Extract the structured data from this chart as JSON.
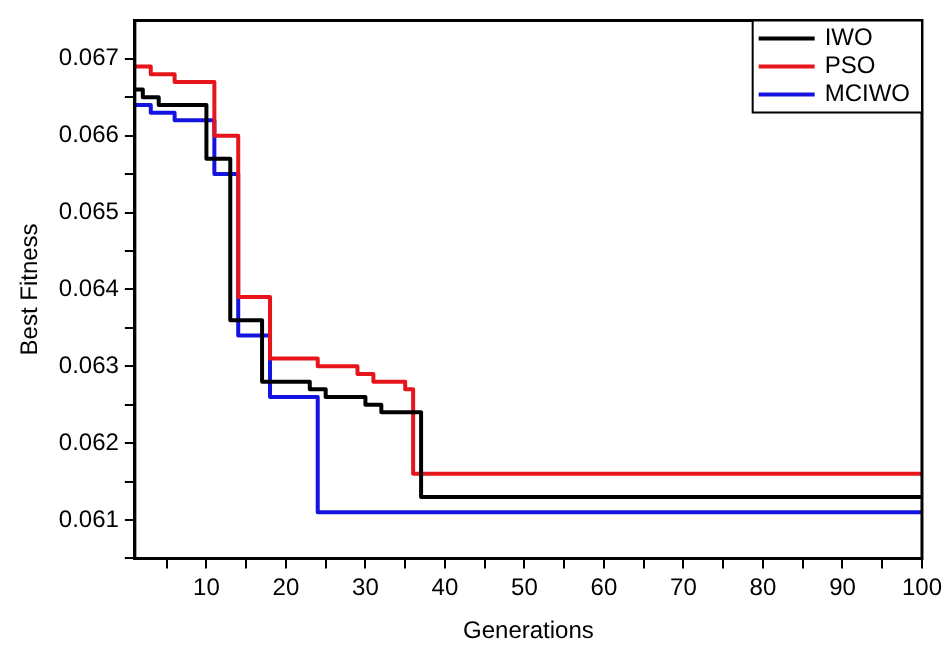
{
  "chart_data": {
    "type": "step",
    "xlabel": "Generations",
    "ylabel": "Best Fitness",
    "xlim": [
      1,
      100
    ],
    "xticks": [
      {
        "value": 5,
        "label": null
      },
      10,
      {
        "value": 15,
        "label": null
      },
      20,
      {
        "value": 25,
        "label": null
      },
      30,
      {
        "value": 35,
        "label": null
      },
      40,
      {
        "value": 45,
        "label": null
      },
      50,
      {
        "value": 55,
        "label": null
      },
      60,
      {
        "value": 65,
        "label": null
      },
      70,
      {
        "value": 75,
        "label": null
      },
      80,
      {
        "value": 85,
        "label": null
      },
      90,
      {
        "value": 95,
        "label": null
      },
      100
    ],
    "ylim": [
      0.0605,
      0.0675
    ],
    "yticks": [
      {
        "value": 0.0605,
        "label": null
      },
      0.061,
      {
        "value": 0.0615,
        "label": null
      },
      0.062,
      {
        "value": 0.0625,
        "label": null
      },
      0.063,
      {
        "value": 0.0635,
        "label": null
      },
      0.064,
      {
        "value": 0.0645,
        "label": null
      },
      0.065,
      {
        "value": 0.0655,
        "label": null
      },
      0.066,
      {
        "value": 0.0665,
        "label": null
      },
      0.067
    ],
    "grid": false,
    "legend": "top right",
    "marker": "none",
    "line_style": "solid",
    "series": [
      {
        "name": "IWO",
        "color": "#000000",
        "x": [
          1,
          2,
          4,
          10,
          13,
          17,
          23,
          25,
          30,
          32,
          37,
          100
        ],
        "values": [
          0.0666,
          0.0665,
          0.0664,
          0.0657,
          0.0636,
          0.0628,
          0.0627,
          0.0626,
          0.0625,
          0.0624,
          0.0613,
          0.0613
        ]
      },
      {
        "name": "PSO",
        "color": "#e8141c",
        "x": [
          1,
          3,
          6,
          11,
          14,
          18,
          24,
          29,
          31,
          35,
          36,
          100
        ],
        "values": [
          0.0669,
          0.0668,
          0.0667,
          0.066,
          0.0639,
          0.0631,
          0.063,
          0.0629,
          0.0628,
          0.0627,
          0.0616,
          0.0616
        ]
      },
      {
        "name": "MCIWO",
        "color": "#1414e0",
        "x": [
          1,
          3,
          6,
          11,
          14,
          18,
          24,
          100
        ],
        "values": [
          0.0664,
          0.0663,
          0.0662,
          0.0655,
          0.0634,
          0.0626,
          0.0611,
          0.0611
        ]
      }
    ]
  }
}
